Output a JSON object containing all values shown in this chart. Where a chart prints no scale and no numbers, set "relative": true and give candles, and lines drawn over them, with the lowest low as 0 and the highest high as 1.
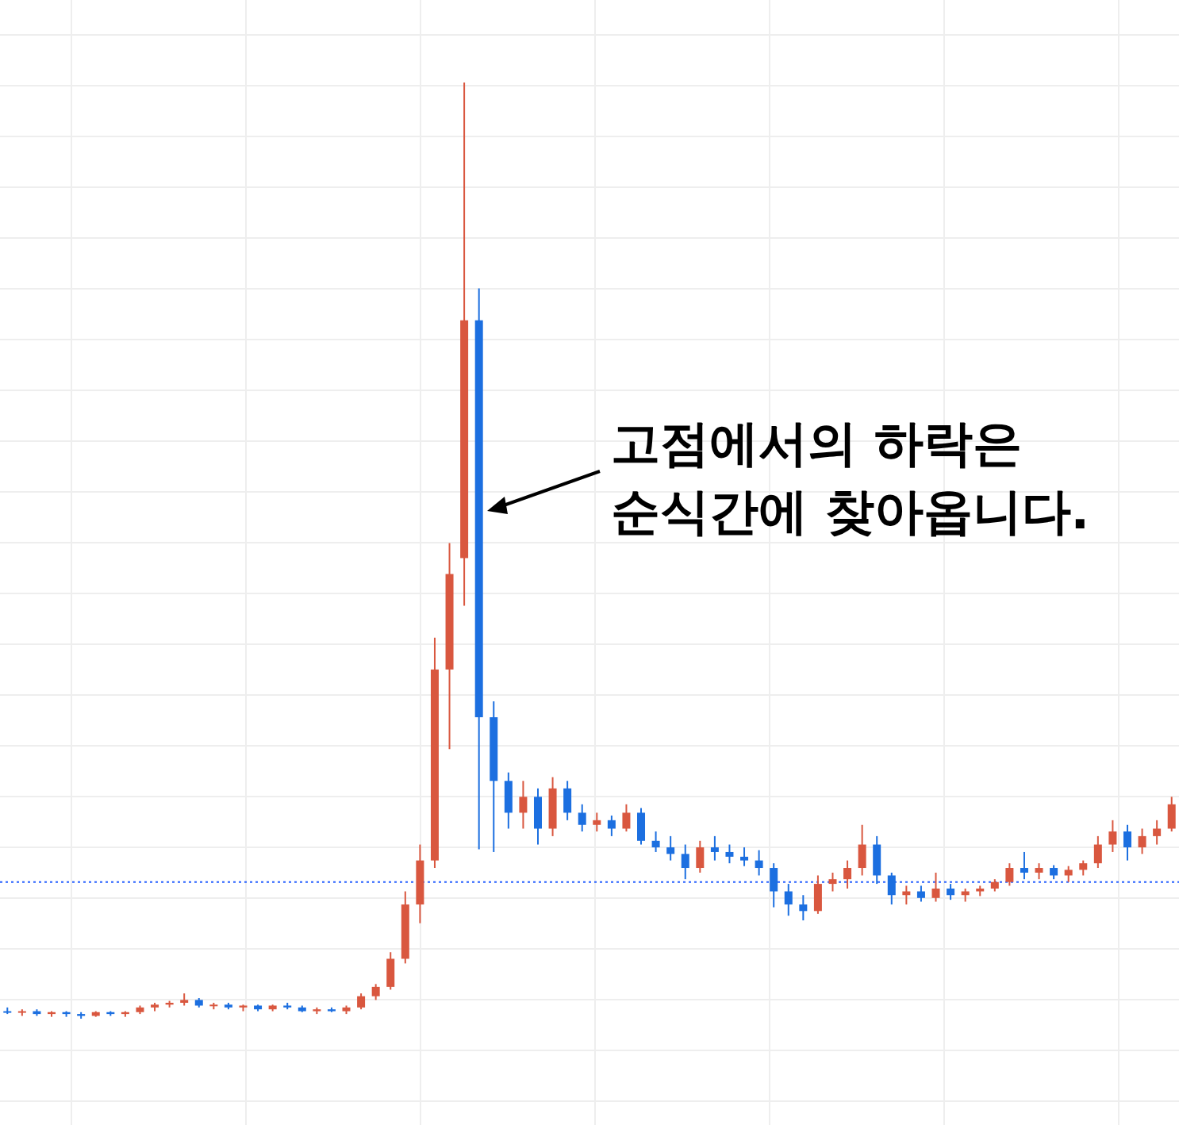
{
  "chart_data": {
    "type": "candlestick",
    "relative": true,
    "grid": true,
    "categories": [
      null,
      null,
      null,
      null,
      null,
      null,
      null,
      null,
      null,
      null,
      null,
      null,
      null,
      null,
      null,
      null,
      null,
      null,
      null,
      null,
      null,
      null,
      null,
      null,
      null,
      null,
      null,
      null,
      null,
      null,
      null,
      null,
      null,
      null,
      null,
      null,
      null,
      null,
      null,
      null,
      null,
      null,
      null,
      null,
      null,
      null,
      null,
      null,
      null,
      null,
      null,
      null,
      null,
      null,
      null,
      null,
      null,
      null,
      null,
      null,
      null,
      null,
      null,
      null,
      null,
      null,
      null,
      null,
      null,
      null,
      null,
      null,
      null,
      null,
      null,
      null,
      null,
      null,
      null,
      null
    ],
    "ohlc": [
      [
        0.008,
        0.012,
        0.005,
        0.007
      ],
      [
        0.007,
        0.01,
        0.003,
        0.008
      ],
      [
        0.008,
        0.01,
        0.003,
        0.005
      ],
      [
        0.005,
        0.008,
        0.002,
        0.007
      ],
      [
        0.007,
        0.008,
        0.002,
        0.005
      ],
      [
        0.005,
        0.007,
        0,
        0.003
      ],
      [
        0.003,
        0.008,
        0.002,
        0.007
      ],
      [
        0.007,
        0.008,
        0.003,
        0.005
      ],
      [
        0.005,
        0.008,
        0.002,
        0.007
      ],
      [
        0.007,
        0.014,
        0.005,
        0.012
      ],
      [
        0.012,
        0.017,
        0.008,
        0.015
      ],
      [
        0.015,
        0.019,
        0.012,
        0.017
      ],
      [
        0.017,
        0.027,
        0.014,
        0.02
      ],
      [
        0.02,
        0.022,
        0.012,
        0.014
      ],
      [
        0.014,
        0.017,
        0.01,
        0.015
      ],
      [
        0.015,
        0.017,
        0.01,
        0.012
      ],
      [
        0.012,
        0.015,
        0.008,
        0.014
      ],
      [
        0.014,
        0.015,
        0.008,
        0.01
      ],
      [
        0.01,
        0.015,
        0.008,
        0.014
      ],
      [
        0.014,
        0.017,
        0.01,
        0.012
      ],
      [
        0.012,
        0.014,
        0.007,
        0.008
      ],
      [
        0.008,
        0.012,
        0.005,
        0.01
      ],
      [
        0.01,
        0.012,
        0.007,
        0.008
      ],
      [
        0.008,
        0.014,
        0.005,
        0.012
      ],
      [
        0.012,
        0.027,
        0.01,
        0.024
      ],
      [
        0.024,
        0.037,
        0.02,
        0.034
      ],
      [
        0.034,
        0.071,
        0.031,
        0.064
      ],
      [
        0.064,
        0.136,
        0.059,
        0.122
      ],
      [
        0.122,
        0.186,
        0.102,
        0.169
      ],
      [
        0.169,
        0.407,
        0.161,
        0.373
      ],
      [
        0.373,
        0.508,
        0.288,
        0.475
      ],
      [
        0.492,
        1,
        0.441,
        0.746
      ],
      [
        0.746,
        0.78,
        0.181,
        0.322
      ],
      [
        0.322,
        0.339,
        0.178,
        0.254
      ],
      [
        0.254,
        0.263,
        0.203,
        0.22
      ],
      [
        0.22,
        0.254,
        0.203,
        0.237
      ],
      [
        0.237,
        0.246,
        0.186,
        0.203
      ],
      [
        0.203,
        0.258,
        0.195,
        0.246
      ],
      [
        0.246,
        0.254,
        0.212,
        0.22
      ],
      [
        0.22,
        0.229,
        0.2,
        0.207
      ],
      [
        0.207,
        0.22,
        0.2,
        0.212
      ],
      [
        0.212,
        0.217,
        0.195,
        0.203
      ],
      [
        0.203,
        0.229,
        0.2,
        0.22
      ],
      [
        0.22,
        0.225,
        0.186,
        0.19
      ],
      [
        0.19,
        0.2,
        0.178,
        0.183
      ],
      [
        0.183,
        0.195,
        0.169,
        0.176
      ],
      [
        0.176,
        0.186,
        0.149,
        0.161
      ],
      [
        0.161,
        0.19,
        0.156,
        0.183
      ],
      [
        0.183,
        0.195,
        0.169,
        0.178
      ],
      [
        0.178,
        0.186,
        0.166,
        0.173
      ],
      [
        0.173,
        0.183,
        0.163,
        0.169
      ],
      [
        0.169,
        0.18,
        0.153,
        0.161
      ],
      [
        0.161,
        0.166,
        0.119,
        0.136
      ],
      [
        0.136,
        0.144,
        0.11,
        0.122
      ],
      [
        0.122,
        0.132,
        0.105,
        0.115
      ],
      [
        0.115,
        0.153,
        0.112,
        0.144
      ],
      [
        0.144,
        0.156,
        0.136,
        0.149
      ],
      [
        0.149,
        0.169,
        0.139,
        0.161
      ],
      [
        0.161,
        0.207,
        0.153,
        0.186
      ],
      [
        0.186,
        0.195,
        0.144,
        0.153
      ],
      [
        0.153,
        0.156,
        0.122,
        0.132
      ],
      [
        0.132,
        0.142,
        0.122,
        0.136
      ],
      [
        0.136,
        0.142,
        0.125,
        0.129
      ],
      [
        0.129,
        0.156,
        0.125,
        0.139
      ],
      [
        0.139,
        0.144,
        0.127,
        0.132
      ],
      [
        0.132,
        0.139,
        0.125,
        0.136
      ],
      [
        0.136,
        0.142,
        0.131,
        0.139
      ],
      [
        0.139,
        0.149,
        0.136,
        0.146
      ],
      [
        0.146,
        0.166,
        0.142,
        0.161
      ],
      [
        0.161,
        0.178,
        0.149,
        0.156
      ],
      [
        0.156,
        0.166,
        0.149,
        0.161
      ],
      [
        0.161,
        0.164,
        0.149,
        0.153
      ],
      [
        0.153,
        0.163,
        0.146,
        0.159
      ],
      [
        0.159,
        0.169,
        0.153,
        0.166
      ],
      [
        0.166,
        0.195,
        0.161,
        0.186
      ],
      [
        0.186,
        0.212,
        0.178,
        0.2
      ],
      [
        0.2,
        0.207,
        0.169,
        0.183
      ],
      [
        0.183,
        0.203,
        0.176,
        0.195
      ],
      [
        0.195,
        0.212,
        0.186,
        0.203
      ],
      [
        0.203,
        0.237,
        0.2,
        0.229
      ]
    ],
    "colors": [
      "#1c6fe0",
      "#d9573f",
      "#1c6fe0",
      "#d9573f",
      "#1c6fe0",
      "#1c6fe0",
      "#d9573f",
      "#1c6fe0",
      "#d9573f",
      "#d9573f",
      "#d9573f",
      "#d9573f",
      "#d9573f",
      "#1c6fe0",
      "#d9573f",
      "#1c6fe0",
      "#d9573f",
      "#1c6fe0",
      "#d9573f",
      "#1c6fe0",
      "#1c6fe0",
      "#d9573f",
      "#1c6fe0",
      "#d9573f",
      "#d9573f",
      "#d9573f",
      "#d9573f",
      "#d9573f",
      "#d9573f",
      "#d9573f",
      "#d9573f",
      "#d9573f",
      "#1c6fe0",
      "#1c6fe0",
      "#1c6fe0",
      "#d9573f",
      "#1c6fe0",
      "#d9573f",
      "#1c6fe0",
      "#1c6fe0",
      "#d9573f",
      "#1c6fe0",
      "#d9573f",
      "#1c6fe0",
      "#1c6fe0",
      "#1c6fe0",
      "#1c6fe0",
      "#d9573f",
      "#1c6fe0",
      "#1c6fe0",
      "#1c6fe0",
      "#1c6fe0",
      "#1c6fe0",
      "#1c6fe0",
      "#1c6fe0",
      "#d9573f",
      "#d9573f",
      "#d9573f",
      "#d9573f",
      "#1c6fe0",
      "#1c6fe0",
      "#d9573f",
      "#1c6fe0",
      "#d9573f",
      "#1c6fe0",
      "#d9573f",
      "#d9573f",
      "#d9573f",
      "#d9573f",
      "#1c6fe0",
      "#d9573f",
      "#1c6fe0",
      "#d9573f",
      "#d9573f",
      "#d9573f",
      "#d9573f",
      "#1c6fe0",
      "#d9573f",
      "#d9573f",
      "#d9573f"
    ],
    "ref_lines": [
      {
        "axis": "y",
        "value": 0.146,
        "color": "#2962ff",
        "line_style": "dotted"
      }
    ],
    "annotations": [
      "고점에서의 하락은\n순식간에 찾아옵니다."
    ]
  }
}
